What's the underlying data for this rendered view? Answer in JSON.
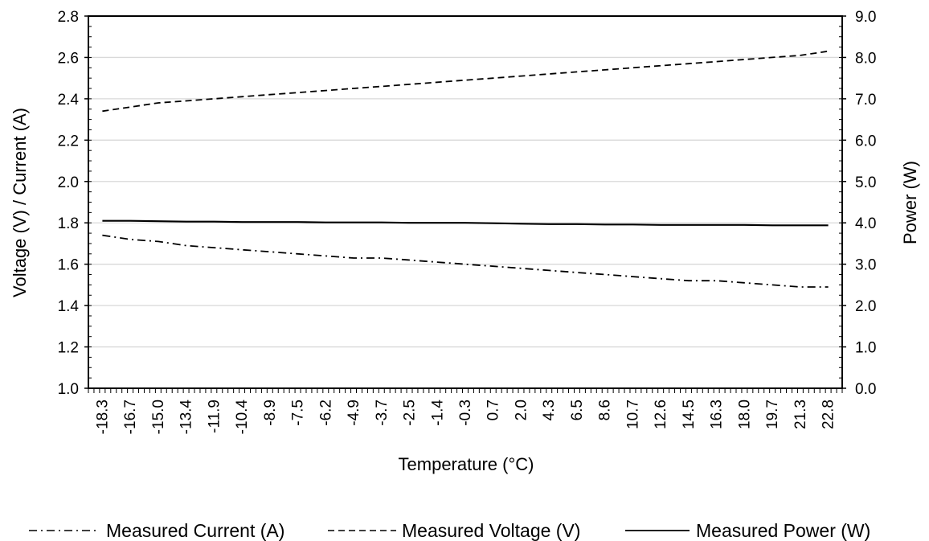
{
  "chart_data": {
    "type": "line",
    "xlabel": "Temperature (°C)",
    "ylabel": "Voltage (V) / Current (A)",
    "y2label": "Power (W)",
    "ylim": [
      1.0,
      2.8
    ],
    "y2lim": [
      0.0,
      9.0
    ],
    "yticks": [
      "1.0",
      "1.2",
      "1.4",
      "1.6",
      "1.8",
      "2.0",
      "2.2",
      "2.4",
      "2.6",
      "2.8"
    ],
    "y2ticks": [
      "0.0",
      "1.0",
      "2.0",
      "3.0",
      "4.0",
      "5.0",
      "6.0",
      "7.0",
      "8.0",
      "9.0"
    ],
    "x_tick_labels": [
      "-18.3",
      "-16.7",
      "-15.0",
      "-13.4",
      "-11.9",
      "-10.4",
      "-8.9",
      "-7.5",
      "-6.2",
      "-4.9",
      "-3.7",
      "-2.5",
      "-1.4",
      "-0.3",
      "0.7",
      "2.0",
      "4.3",
      "6.5",
      "8.6",
      "10.7",
      "12.6",
      "14.5",
      "16.3",
      "18.0",
      "19.7",
      "21.3",
      "22.8"
    ],
    "grid": "horizontal",
    "legend_position": "bottom",
    "series": [
      {
        "name": "Measured Current (A)",
        "axis": "left",
        "style": "dash-dot",
        "values": [
          1.74,
          1.72,
          1.71,
          1.69,
          1.68,
          1.67,
          1.66,
          1.65,
          1.64,
          1.63,
          1.63,
          1.62,
          1.61,
          1.6,
          1.59,
          1.58,
          1.57,
          1.56,
          1.55,
          1.54,
          1.53,
          1.52,
          1.52,
          1.51,
          1.5,
          1.49,
          1.49
        ]
      },
      {
        "name": "Measured Voltage (V)",
        "axis": "left",
        "style": "dashed",
        "values": [
          2.34,
          2.36,
          2.38,
          2.39,
          2.4,
          2.41,
          2.42,
          2.43,
          2.44,
          2.45,
          2.46,
          2.47,
          2.48,
          2.49,
          2.5,
          2.51,
          2.52,
          2.53,
          2.54,
          2.55,
          2.56,
          2.57,
          2.58,
          2.59,
          2.6,
          2.61,
          2.63
        ]
      },
      {
        "name": "Measured Power (W)",
        "axis": "right",
        "style": "solid",
        "values": [
          4.05,
          4.05,
          4.04,
          4.03,
          4.03,
          4.02,
          4.02,
          4.02,
          4.01,
          4.01,
          4.01,
          4.0,
          4.0,
          4.0,
          3.99,
          3.98,
          3.97,
          3.97,
          3.96,
          3.96,
          3.95,
          3.95,
          3.95,
          3.95,
          3.94,
          3.94,
          3.94
        ]
      }
    ]
  }
}
